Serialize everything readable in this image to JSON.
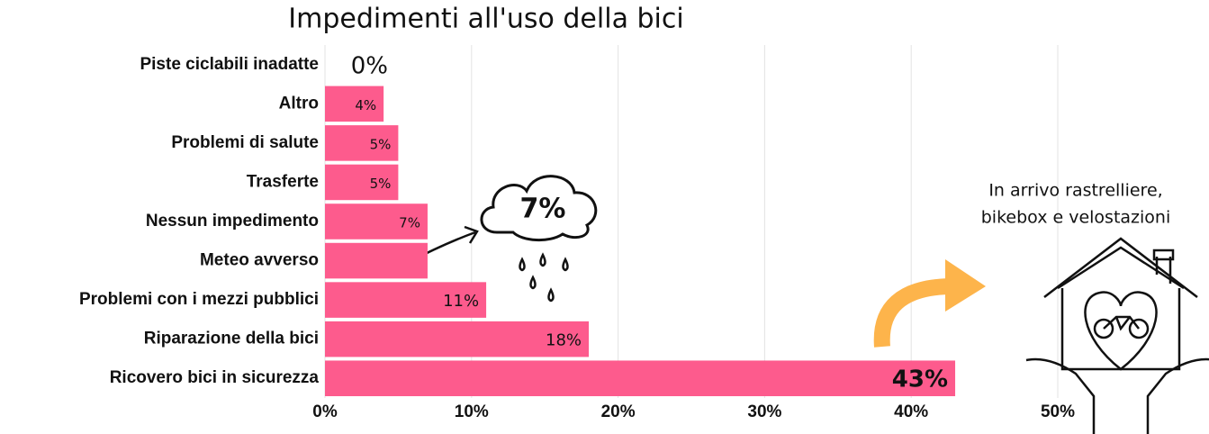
{
  "chart_data": {
    "type": "bar",
    "orientation": "horizontal",
    "title": "Impedimenti all'uso della bici",
    "categories": [
      "Piste ciclabili inadatte",
      "Altro",
      "Problemi di salute",
      "Trasferte",
      "Nessun impedimento",
      "Meteo avverso",
      "Problemi con i mezzi pubblici",
      "Riparazione della bici",
      "Ricovero bici in sicurezza"
    ],
    "values": [
      0,
      4,
      5,
      5,
      7,
      7,
      11,
      18,
      43
    ],
    "value_labels": [
      "0%",
      "4%",
      "5%",
      "5%",
      "7%",
      "7%",
      "11%",
      "18%",
      "43%"
    ],
    "color": "#fd5b8d",
    "xlim": [
      0,
      50
    ],
    "xticks": [
      {
        "value": 0,
        "label": "0%"
      },
      {
        "value": 10,
        "label": "10%"
      },
      {
        "value": 20,
        "label": "20%"
      },
      {
        "value": 30,
        "label": "30%"
      },
      {
        "value": 40,
        "label": "40%"
      },
      {
        "value": 50,
        "label": "50%"
      }
    ],
    "grid": true,
    "annotation": [
      "In arrivo rastrelliere,",
      "bikebox e velostazioni"
    ]
  }
}
